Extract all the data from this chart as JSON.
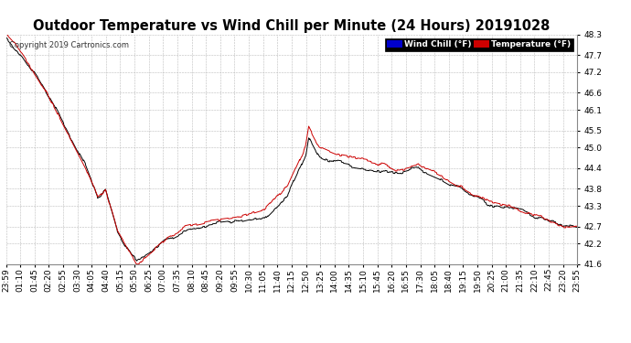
{
  "title": "Outdoor Temperature vs Wind Chill per Minute (24 Hours) 20191028",
  "copyright": "Copyright 2019 Cartronics.com",
  "legend_wind_chill": "Wind Chill (°F)",
  "legend_temperature": "Temperature (°F)",
  "ylim": [
    41.6,
    48.3
  ],
  "yticks": [
    41.6,
    42.2,
    42.7,
    43.3,
    43.8,
    44.4,
    45.0,
    45.5,
    46.1,
    46.6,
    47.2,
    47.7,
    48.3
  ],
  "background_color": "#ffffff",
  "grid_color": "#bbbbbb",
  "line_color_temp": "#cc0000",
  "line_color_wind": "#000000",
  "title_fontsize": 10.5,
  "tick_fontsize": 6.5,
  "xlabel_rotation": 90,
  "x_labels": [
    "23:59",
    "01:10",
    "01:45",
    "02:20",
    "02:55",
    "03:30",
    "04:05",
    "04:40",
    "05:15",
    "05:50",
    "06:25",
    "07:00",
    "07:35",
    "08:10",
    "08:45",
    "09:20",
    "09:55",
    "10:30",
    "11:05",
    "11:40",
    "12:15",
    "12:50",
    "13:25",
    "14:00",
    "14:35",
    "15:10",
    "15:45",
    "16:20",
    "16:55",
    "17:30",
    "18:05",
    "18:40",
    "19:15",
    "19:50",
    "20:25",
    "21:00",
    "21:35",
    "22:10",
    "22:45",
    "23:20",
    "23:55"
  ],
  "n_points": 1440,
  "ctrl_x_temp": [
    0,
    40,
    80,
    120,
    160,
    200,
    230,
    250,
    265,
    280,
    310,
    315,
    330,
    360,
    400,
    450,
    510,
    580,
    650,
    710,
    745,
    755,
    762,
    775,
    790,
    830,
    880,
    940,
    990,
    1040,
    1090,
    1120,
    1150,
    1180,
    1220,
    1260,
    1300,
    1340,
    1380,
    1420,
    1439
  ],
  "ctrl_y_temp": [
    48.3,
    47.8,
    47.1,
    46.3,
    45.4,
    44.5,
    43.6,
    43.8,
    43.2,
    42.6,
    42.0,
    41.9,
    41.6,
    41.9,
    42.3,
    42.6,
    42.75,
    42.85,
    43.1,
    43.8,
    44.7,
    45.0,
    45.5,
    45.2,
    44.9,
    44.7,
    44.6,
    44.5,
    44.4,
    44.55,
    44.3,
    44.1,
    43.9,
    43.7,
    43.4,
    43.3,
    43.2,
    43.0,
    42.85,
    42.75,
    42.7
  ],
  "ctrl_x_wind": [
    0,
    40,
    80,
    120,
    160,
    200,
    230,
    250,
    265,
    280,
    310,
    315,
    330,
    360,
    400,
    450,
    510,
    580,
    650,
    710,
    745,
    755,
    762,
    775,
    790,
    830,
    880,
    940,
    990,
    1040,
    1090,
    1120,
    1150,
    1180,
    1220,
    1260,
    1300,
    1340,
    1380,
    1420,
    1439
  ],
  "ctrl_y_wind": [
    48.2,
    47.7,
    47.0,
    46.2,
    45.3,
    44.4,
    43.5,
    43.7,
    43.1,
    42.5,
    41.9,
    41.8,
    41.6,
    41.8,
    42.2,
    42.5,
    42.7,
    42.8,
    43.0,
    43.7,
    44.6,
    44.9,
    45.4,
    45.1,
    44.8,
    44.6,
    44.5,
    44.4,
    44.3,
    44.45,
    44.2,
    44.0,
    43.8,
    43.6,
    43.3,
    43.2,
    43.1,
    42.9,
    42.8,
    42.7,
    42.65
  ]
}
